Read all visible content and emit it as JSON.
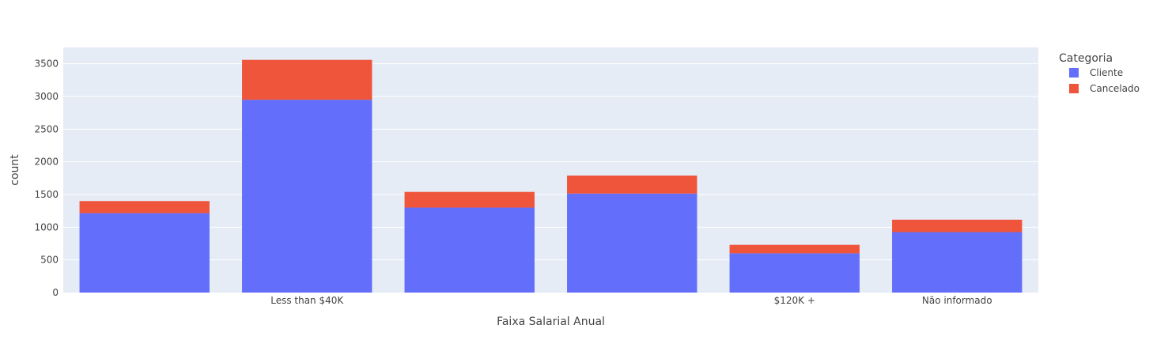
{
  "chart_data": {
    "type": "bar",
    "barmode": "stack",
    "categories": [
      "",
      "Less than $40K",
      "",
      "",
      "$120K +",
      "Não informado"
    ],
    "series": [
      {
        "name": "Cliente",
        "values": [
          1215,
          2950,
          1300,
          1515,
          600,
          925
        ]
      },
      {
        "name": "Cancelado",
        "values": [
          185,
          610,
          240,
          275,
          130,
          190
        ]
      }
    ],
    "title": "",
    "xlabel": "Faixa Salarial Anual",
    "ylabel": "count",
    "ylim": [
      0,
      3750
    ],
    "yticks": [
      0,
      500,
      1000,
      1500,
      2000,
      2500,
      3000,
      3500
    ],
    "grid": true,
    "legend": {
      "title": "Categoria",
      "position": "top-right"
    },
    "colors": {
      "Cliente": "#636efa",
      "Cancelado": "#ef553b",
      "plot_bg": "#e5ecf6",
      "grid": "#ffffff"
    }
  }
}
